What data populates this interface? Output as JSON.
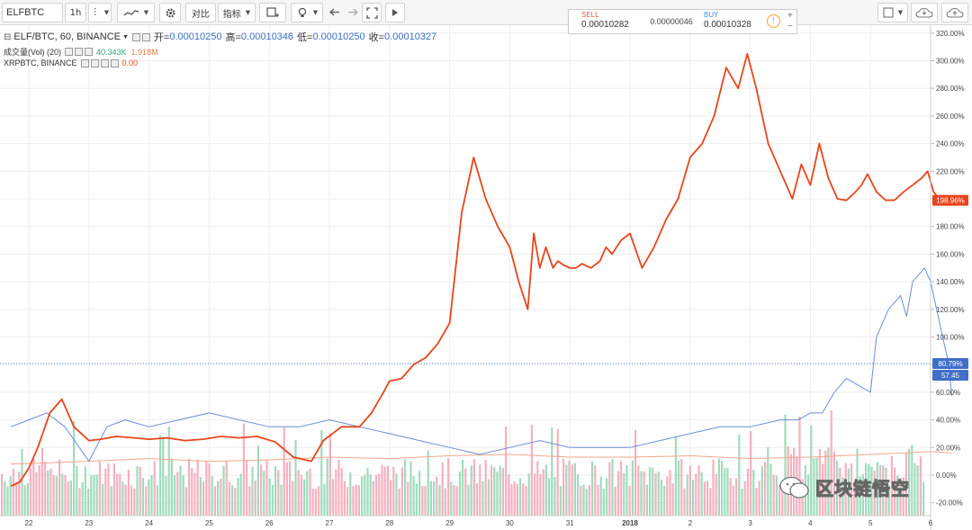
{
  "toolbar": {
    "symbol": "ELFBTC",
    "interval": "1h",
    "compare_label": "对比",
    "indicators_label": "指标",
    "icons": [
      "more-vert-icon",
      "line-chart-icon",
      "gear-icon",
      "shapes-icon",
      "alert-icon",
      "bulb-icon",
      "undo-icon",
      "redo-icon",
      "fullscreen-icon",
      "play-icon",
      "square-icon",
      "cloud-icon",
      "upload-icon"
    ]
  },
  "trade": {
    "sell_label": "SELL",
    "sell_value": "0.00010282",
    "spread": "0.00000046",
    "buy_label": "BUY",
    "buy_value": "0.00010328",
    "plus": "+",
    "minus": "−",
    "info": "!"
  },
  "legend": {
    "main_title": "ELF/BTC, 60, BINANCE",
    "open_label": "开=",
    "open_value": "0.00010250",
    "high_label": "高=",
    "high_value": "0.00010346",
    "low_label": "低=",
    "low_value": "0.00010250",
    "close_label": "收=",
    "close_value": "0.00010327",
    "vol_title": "成交量(Vol) (20)",
    "vol_value1": "40.343K",
    "vol_value2": "1.918M",
    "compare_title": "XRPBTC, BINANCE",
    "compare_value": "0.00"
  },
  "colors": {
    "elf_line": "#e8451c",
    "xrp_line": "#6b8ed6",
    "vol_ma": "#f4a78a",
    "vol_up": "#8fd6b0",
    "vol_down": "#f2a4b4",
    "grid": "#eeeeee",
    "ref_line": "#1a5fb4"
  },
  "badges": {
    "elf_last": "198.96%",
    "xrp_last_a": "80.79%",
    "xrp_last_b": "57.45"
  },
  "watermark": "区块链悟空",
  "chart_data": {
    "type": "line",
    "y_scale": "percent",
    "ylim": [
      -25,
      325
    ],
    "y_ticks": [
      "320.00%",
      "300.00%",
      "280.00%",
      "260.00%",
      "240.00%",
      "220.00%",
      "200.00%",
      "180.00%",
      "160.00%",
      "140.00%",
      "120.00%",
      "100.00%",
      "80.00%",
      "60.00%",
      "40.00%",
      "20.00%",
      "0.00%",
      "-20.00%"
    ],
    "x_tick_labels": [
      "22",
      "23",
      "24",
      "25",
      "26",
      "27",
      "28",
      "29",
      "30",
      "31",
      "2018",
      "2",
      "3",
      "4",
      "5",
      "6"
    ],
    "x_range": [
      0,
      15.5
    ],
    "grid": true,
    "series": [
      {
        "name": "ELF/BTC, 60, BINANCE",
        "x": [
          -0.3,
          -0.15,
          0,
          0.15,
          0.35,
          0.55,
          0.75,
          1.0,
          1.2,
          1.45,
          1.75,
          2.0,
          2.3,
          2.6,
          2.9,
          3.2,
          3.5,
          3.8,
          4.1,
          4.4,
          4.7,
          4.9,
          5.2,
          5.5,
          5.7,
          5.9,
          6.0,
          6.2,
          6.4,
          6.6,
          6.8,
          7.0,
          7.2,
          7.4,
          7.6,
          7.8,
          8.0,
          8.15,
          8.3,
          8.4,
          8.5,
          8.6,
          8.72,
          8.8,
          8.9,
          9.0,
          9.1,
          9.2,
          9.35,
          9.5,
          9.6,
          9.7,
          9.85,
          10.0,
          10.2,
          10.4,
          10.6,
          10.8,
          11.0,
          11.2,
          11.4,
          11.6,
          11.8,
          11.95,
          12.1,
          12.3,
          12.5,
          12.7,
          12.85,
          13.0,
          13.15,
          13.3,
          13.45,
          13.6,
          13.75,
          13.85,
          13.95,
          14.1,
          14.25,
          14.4,
          14.55,
          14.7,
          14.85,
          14.95,
          15.05,
          15.15,
          15.25,
          15.35
        ],
        "y": [
          -8,
          -5,
          5,
          20,
          45,
          55,
          35,
          25,
          26,
          28,
          27,
          26,
          27,
          25,
          26,
          28,
          27,
          28,
          24,
          13,
          10,
          25,
          35,
          35,
          45,
          60,
          68,
          70,
          80,
          85,
          95,
          110,
          190,
          230,
          200,
          180,
          165,
          140,
          120,
          175,
          150,
          165,
          150,
          155,
          152,
          150,
          150,
          153,
          150,
          155,
          165,
          160,
          170,
          175,
          150,
          165,
          185,
          200,
          230,
          240,
          260,
          295,
          280,
          305,
          280,
          240,
          220,
          200,
          225,
          210,
          240,
          215,
          200,
          198.96,
          205,
          210,
          218,
          205,
          199,
          199,
          205,
          210,
          215,
          220,
          205,
          200,
          199,
          199
        ],
        "values_note_free": true
      },
      {
        "name": "XRPBTC, BINANCE",
        "x": [
          -0.3,
          0.0,
          0.3,
          0.6,
          1.0,
          1.3,
          1.6,
          2.0,
          2.5,
          3.0,
          3.5,
          4.0,
          4.5,
          5.0,
          5.5,
          6.0,
          6.5,
          7.0,
          7.5,
          8.0,
          8.5,
          9.0,
          9.5,
          10.0,
          10.5,
          11.0,
          11.5,
          12.0,
          12.5,
          12.8,
          13.0,
          13.2,
          13.4,
          13.6,
          13.8,
          14.0,
          14.1,
          14.2,
          14.3,
          14.4,
          14.5,
          14.6,
          14.7,
          14.8,
          14.9,
          15.0,
          15.1,
          15.2,
          15.3,
          15.35
        ],
        "y": [
          35,
          40,
          45,
          35,
          10,
          35,
          40,
          35,
          40,
          45,
          40,
          35,
          35,
          40,
          35,
          30,
          25,
          20,
          15,
          20,
          25,
          20,
          20,
          20,
          25,
          30,
          35,
          35,
          40,
          40,
          45,
          45,
          60,
          70,
          65,
          60,
          100,
          110,
          120,
          125,
          130,
          115,
          140,
          145,
          150,
          140,
          120,
          100,
          80.79,
          57.45
        ]
      },
      {
        "name": "成交量(Vol) (20)",
        "x": [
          -0.3,
          1.0,
          2.0,
          3.0,
          4.0,
          5.0,
          6.0,
          7.0,
          8.0,
          9.0,
          10.0,
          11.0,
          12.0,
          13.0,
          14.0,
          15.0,
          15.35
        ],
        "y": [
          8,
          10,
          12,
          10,
          11,
          13,
          12,
          14,
          15,
          13,
          13,
          14,
          12,
          13,
          15,
          17,
          16
        ]
      }
    ]
  }
}
